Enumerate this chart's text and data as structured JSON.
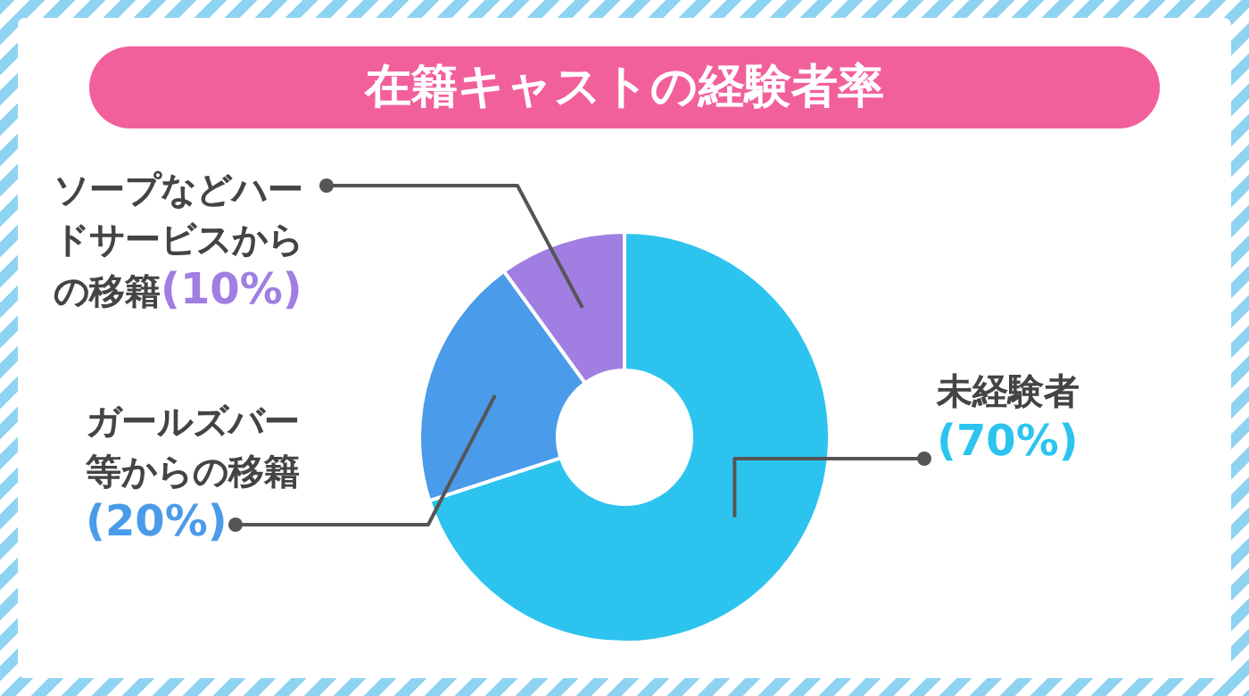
{
  "chart_data": {
    "type": "donut",
    "title": "在籍キャストの経験者率",
    "categories": [
      "未経験者",
      "ガールズバー等からの移籍",
      "ソープなどハードサービスからの移籍"
    ],
    "values": [
      70,
      20,
      10
    ],
    "colors": [
      "#2cc4ef",
      "#4a9be9",
      "#a07ee2"
    ],
    "value_labels": [
      "(70%)",
      "(20%)",
      "(10%)"
    ],
    "legend": false
  }
}
